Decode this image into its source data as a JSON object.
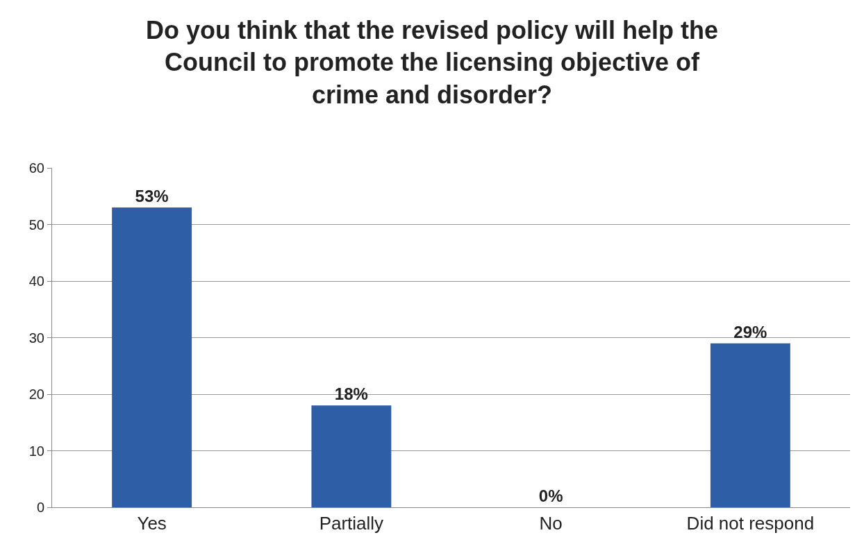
{
  "chart_data": {
    "type": "bar",
    "title": "Do you think that the revised policy will help the\nCouncil to promote the licensing objective of\ncrime and disorder?",
    "categories": [
      "Yes",
      "Partially",
      "No",
      "Did not respond"
    ],
    "values": [
      53,
      18,
      0,
      29
    ],
    "value_labels": [
      "53%",
      "18%",
      "0%",
      "29%"
    ],
    "color": "#2e5fa6",
    "ylim": [
      0,
      60
    ],
    "yticks": [
      0,
      10,
      20,
      30,
      40,
      50,
      60
    ],
    "grid": "y",
    "legend": false
  }
}
